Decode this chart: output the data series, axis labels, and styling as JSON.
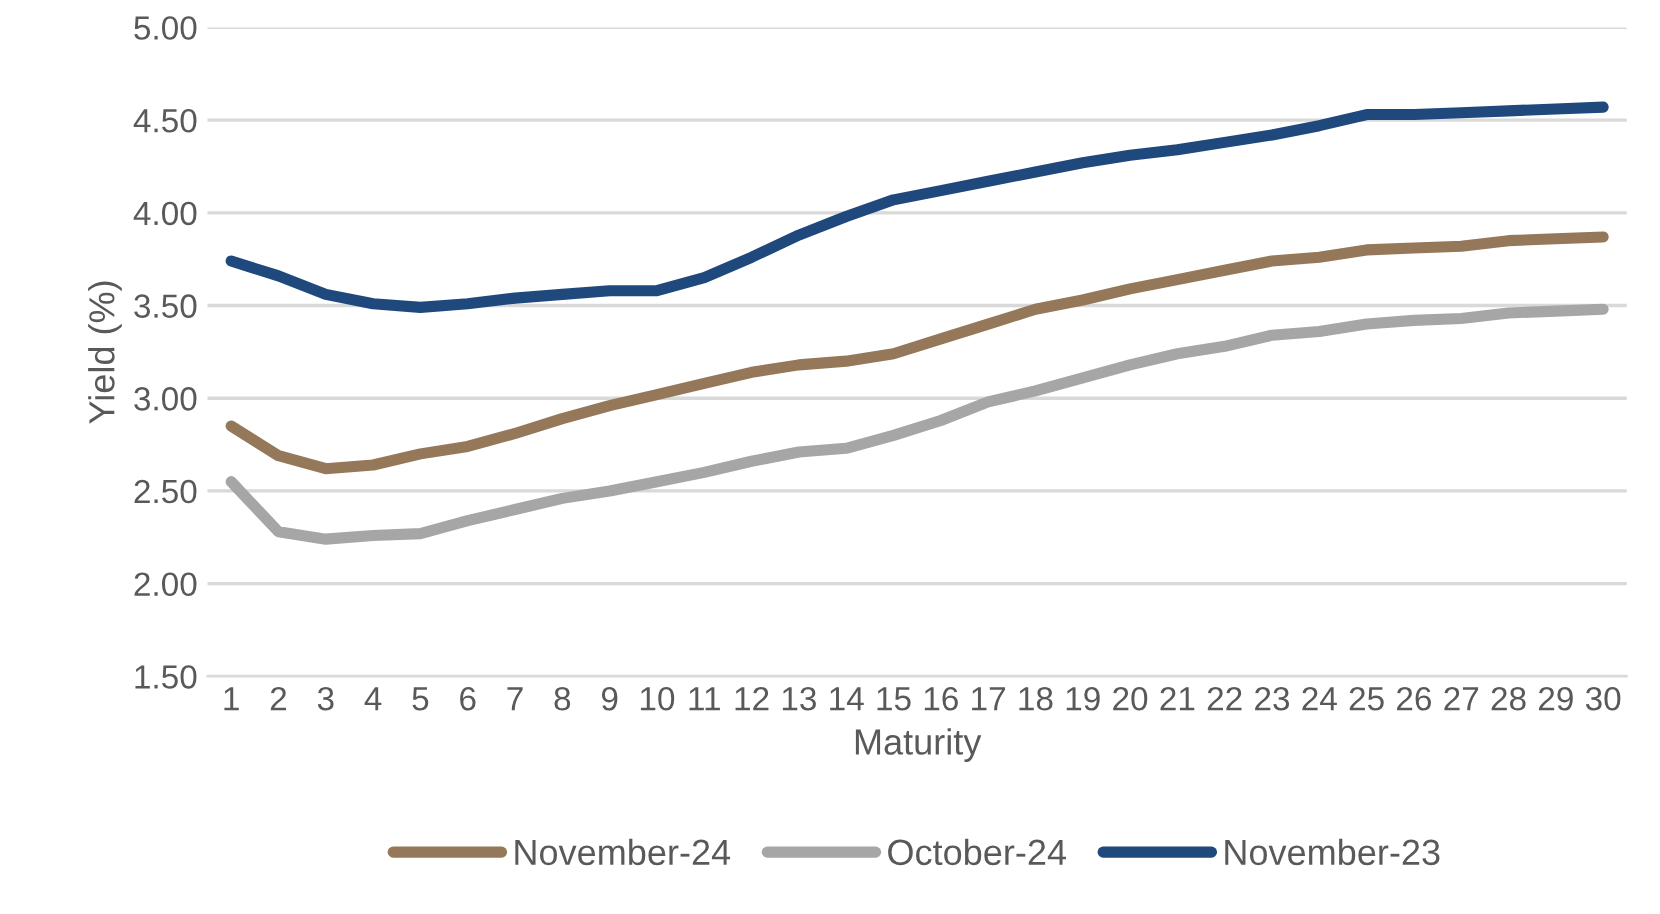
{
  "chart_data": {
    "type": "line",
    "xlabel": "Maturity",
    "ylabel": "Yield (%)",
    "categories": [
      "1",
      "2",
      "3",
      "4",
      "5",
      "6",
      "7",
      "8",
      "9",
      "10",
      "11",
      "12",
      "13",
      "14",
      "15",
      "16",
      "17",
      "18",
      "19",
      "20",
      "21",
      "22",
      "23",
      "24",
      "25",
      "26",
      "27",
      "28",
      "29",
      "30"
    ],
    "series": [
      {
        "name": "November-24",
        "color": "#957859",
        "values": [
          2.85,
          2.69,
          2.62,
          2.64,
          2.7,
          2.74,
          2.81,
          2.89,
          2.96,
          3.02,
          3.08,
          3.14,
          3.18,
          3.2,
          3.24,
          3.32,
          3.4,
          3.48,
          3.53,
          3.59,
          3.64,
          3.69,
          3.74,
          3.76,
          3.8,
          3.81,
          3.82,
          3.85,
          3.86,
          3.87
        ]
      },
      {
        "name": "October-24",
        "color": "#a6a6a6",
        "values": [
          2.55,
          2.28,
          2.24,
          2.26,
          2.27,
          2.34,
          2.4,
          2.46,
          2.5,
          2.55,
          2.6,
          2.66,
          2.71,
          2.73,
          2.8,
          2.88,
          2.98,
          3.04,
          3.11,
          3.18,
          3.24,
          3.28,
          3.34,
          3.36,
          3.4,
          3.42,
          3.43,
          3.46,
          3.47,
          3.48
        ]
      },
      {
        "name": "November-23",
        "color": "#1f497d",
        "values": [
          3.74,
          3.66,
          3.56,
          3.51,
          3.49,
          3.51,
          3.54,
          3.56,
          3.58,
          3.58,
          3.65,
          3.76,
          3.88,
          3.98,
          4.07,
          4.12,
          4.17,
          4.22,
          4.27,
          4.31,
          4.34,
          4.38,
          4.42,
          4.47,
          4.53,
          4.53,
          4.54,
          4.55,
          4.56,
          4.57
        ]
      }
    ],
    "ylim": [
      1.5,
      5.0
    ],
    "yticks": [
      {
        "value": 1.5,
        "label": "1.50"
      },
      {
        "value": 2.0,
        "label": "2.00"
      },
      {
        "value": 2.5,
        "label": "2.50"
      },
      {
        "value": 3.0,
        "label": "3.00"
      },
      {
        "value": 3.5,
        "label": "3.50"
      },
      {
        "value": 4.0,
        "label": "4.00"
      },
      {
        "value": 4.5,
        "label": "4.50"
      },
      {
        "value": 5.0,
        "label": "5.00"
      }
    ],
    "grid": "y",
    "legend": "bottom",
    "marker": "none",
    "line_style": "solid"
  }
}
